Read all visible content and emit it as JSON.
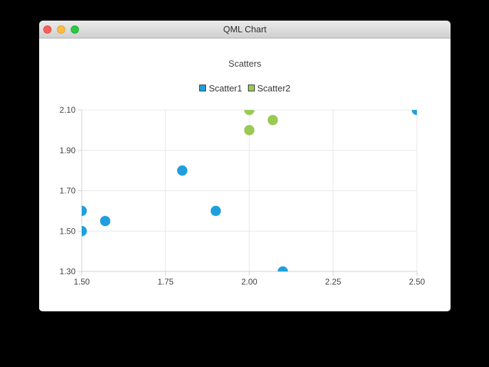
{
  "window": {
    "title": "QML Chart",
    "controls": {
      "close_color": "#f95e57",
      "minimize_color": "#fcbd3f",
      "zoom_color": "#2bc840"
    }
  },
  "chart_data": {
    "type": "scatter",
    "title": "Scatters",
    "legend_position": "top",
    "grid": true,
    "xlim": [
      1.5,
      2.5
    ],
    "ylim": [
      1.3,
      2.1
    ],
    "x_tick_labels": [
      "1.50",
      "1.75",
      "2.00",
      "2.25",
      "2.50"
    ],
    "y_tick_labels": [
      "1.30",
      "1.50",
      "1.70",
      "1.90",
      "2.10"
    ],
    "marker_diameter": 15,
    "series": [
      {
        "name": "Scatter1",
        "color": "#209fdf",
        "marker": "circle",
        "points": [
          {
            "x": 1.5,
            "y": 1.5
          },
          {
            "x": 1.5,
            "y": 1.6
          },
          {
            "x": 1.57,
            "y": 1.55
          },
          {
            "x": 1.8,
            "y": 1.8
          },
          {
            "x": 1.9,
            "y": 1.6
          },
          {
            "x": 2.1,
            "y": 1.3
          },
          {
            "x": 2.5,
            "y": 2.1
          }
        ]
      },
      {
        "name": "Scatter2",
        "color": "#99ca53",
        "marker": "circle",
        "points": [
          {
            "x": 2.0,
            "y": 2.0
          },
          {
            "x": 2.0,
            "y": 2.1
          },
          {
            "x": 2.07,
            "y": 2.05
          }
        ]
      }
    ],
    "colors": {
      "grid": "#e7e7e7",
      "axis": "#d0d0d0",
      "tick_text": "#404040",
      "background": "#ffffff"
    }
  }
}
